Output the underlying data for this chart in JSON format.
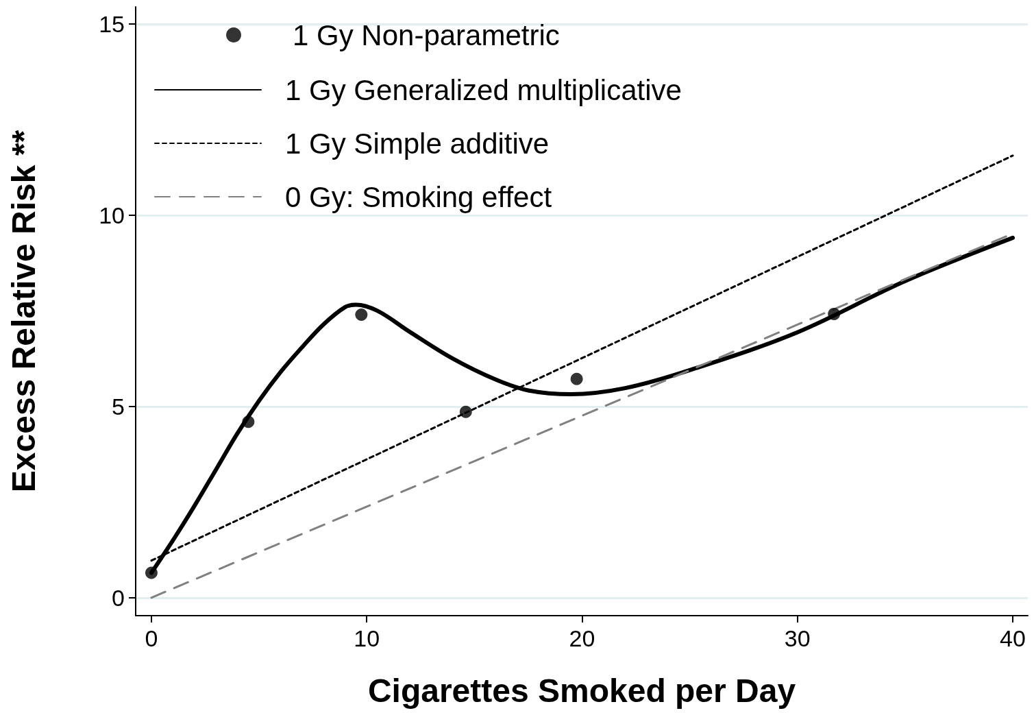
{
  "chart_data": {
    "type": "line",
    "xlabel": "Cigarettes Smoked per Day",
    "ylabel": "Excess Relative Risk **",
    "xlim": [
      -0.73,
      40.7
    ],
    "ylim": [
      -0.47,
      15.45
    ],
    "xticks": [
      0,
      10,
      20,
      30,
      40
    ],
    "yticks": [
      0,
      5,
      10,
      15
    ],
    "grid": "y",
    "legend": "top left",
    "series": [
      {
        "name": "1 Gy Non-parametric",
        "type": "scatter",
        "marker": "circle",
        "color": "#000000",
        "x": [
          0,
          4.5,
          9.75,
          14.6,
          19.75,
          31.7
        ],
        "values": [
          0.65,
          4.6,
          7.4,
          4.86,
          5.72,
          7.42
        ]
      },
      {
        "name": "1 Gy Generalized multiplicative",
        "type": "line",
        "line_style": "solid",
        "color": "#000000",
        "x": [
          0,
          1,
          2,
          3,
          4,
          5,
          6,
          7,
          8,
          9,
          9.5,
          10.5,
          12,
          14,
          16,
          17.5,
          19.5,
          22,
          25,
          30,
          35,
          40
        ],
        "values": [
          0.65,
          1.5,
          2.4,
          3.35,
          4.3,
          5.15,
          5.9,
          6.55,
          7.15,
          7.6,
          7.66,
          7.5,
          6.95,
          6.25,
          5.7,
          5.42,
          5.32,
          5.48,
          5.95,
          6.94,
          8.28,
          9.41
        ]
      },
      {
        "name": "1 Gy Simple additive",
        "type": "line",
        "line_style": "dotted",
        "color": "#000000",
        "x": [
          0,
          40
        ],
        "values": [
          0.97,
          11.56
        ]
      },
      {
        "name": "0 Gy: Smoking effect",
        "type": "line",
        "line_style": "dashed",
        "color": "#808080",
        "x": [
          0,
          40
        ],
        "values": [
          0,
          9.52
        ]
      }
    ]
  }
}
